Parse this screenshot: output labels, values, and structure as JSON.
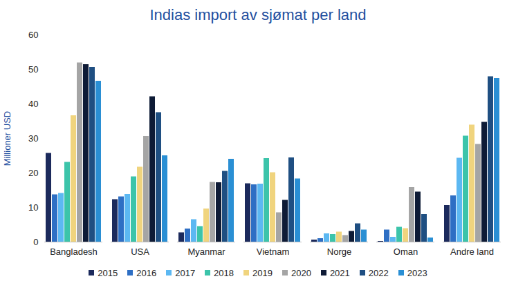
{
  "chart_data": {
    "type": "bar",
    "title": "Indias import av sjømat per land",
    "y_label": "Millioner USD",
    "categories": [
      "Bangladesh",
      "USA",
      "Myanmar",
      "Vietnam",
      "Norge",
      "Oman",
      "Andre land"
    ],
    "series": [
      {
        "name": "2015",
        "color": "#1c2a5c",
        "values": [
          25.7,
          12.3,
          2.7,
          16.9,
          0.6,
          0.2,
          10.6
        ]
      },
      {
        "name": "2016",
        "color": "#2e6fc4",
        "values": [
          13.7,
          13.1,
          3.8,
          16.6,
          1.0,
          3.5,
          13.4
        ]
      },
      {
        "name": "2017",
        "color": "#5cb8f2",
        "values": [
          14.1,
          13.8,
          6.5,
          16.8,
          2.4,
          1.4,
          24.3
        ]
      },
      {
        "name": "2018",
        "color": "#3cc4aa",
        "values": [
          23.1,
          18.9,
          4.5,
          24.2,
          2.2,
          4.3,
          30.7
        ]
      },
      {
        "name": "2019",
        "color": "#f0d47e",
        "values": [
          36.6,
          21.7,
          9.6,
          20.1,
          2.9,
          3.9,
          33.9
        ]
      },
      {
        "name": "2020",
        "color": "#a5a5a5",
        "values": [
          51.9,
          30.6,
          17.3,
          8.5,
          1.9,
          15.8,
          28.3
        ]
      },
      {
        "name": "2021",
        "color": "#0e1b36",
        "values": [
          51.4,
          42.1,
          17.2,
          12.1,
          3.1,
          14.5,
          34.7
        ]
      },
      {
        "name": "2022",
        "color": "#1f4f82",
        "values": [
          50.6,
          37.5,
          20.5,
          24.4,
          5.3,
          8.0,
          47.9
        ]
      },
      {
        "name": "2023",
        "color": "#2a8fd4",
        "values": [
          46.6,
          25.0,
          24.0,
          18.3,
          3.5,
          1.2,
          47.4
        ]
      }
    ],
    "ylim": [
      0,
      60
    ],
    "yticks": [
      0,
      10,
      20,
      30,
      40,
      50,
      60
    ],
    "grid": false,
    "legend": "bottom"
  }
}
